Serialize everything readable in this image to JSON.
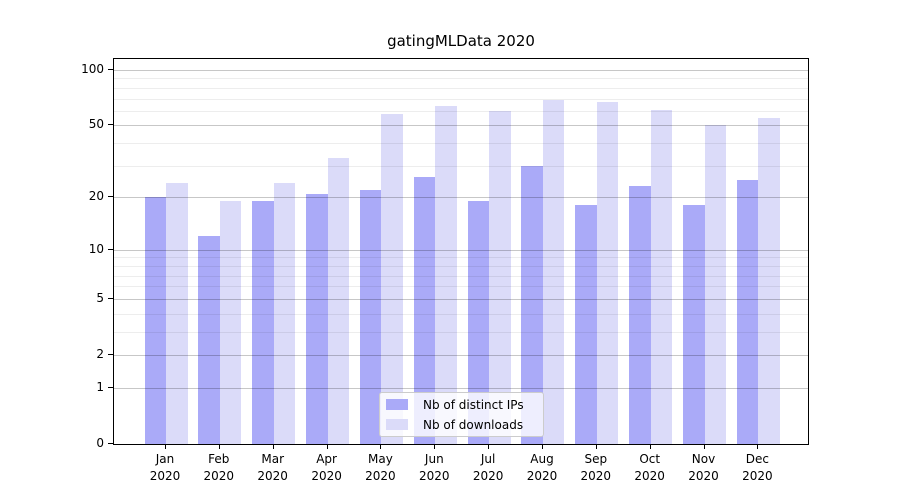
{
  "title": "gatingMLData 2020",
  "chart_data": {
    "type": "bar",
    "title": "gatingMLData 2020",
    "categories": [
      "Jan 2020",
      "Feb 2020",
      "Mar 2020",
      "Apr 2020",
      "May 2020",
      "Jun 2020",
      "Jul 2020",
      "Aug 2020",
      "Sep 2020",
      "Oct 2020",
      "Nov 2020",
      "Dec 2020"
    ],
    "series": [
      {
        "name": "Nb of distinct IPs",
        "color": "#aaaaf8",
        "values": [
          20,
          12,
          19,
          21,
          22,
          26,
          19,
          30,
          18,
          23,
          18,
          25
        ]
      },
      {
        "name": "Nb of downloads",
        "color": "#dbdbf9",
        "values": [
          24,
          19,
          24,
          33,
          58,
          64,
          60,
          69,
          67,
          61,
          50,
          55
        ]
      }
    ],
    "xlabel": "",
    "ylabel": "",
    "yscale": "symlog (log10 of 1+value)",
    "ylim": [
      0,
      115
    ],
    "y_major_ticks": [
      100,
      50,
      20,
      10,
      5,
      2,
      1,
      0
    ],
    "y_minor_gridlines": [
      90,
      80,
      70,
      60,
      40,
      30,
      9,
      8,
      7,
      6,
      4,
      3
    ],
    "grid": "horizontal, major and minor, drawn over bars",
    "legend_position": "inside plot, lower center",
    "axis_color": "#000000",
    "grid_major_color": "#c7c7c7",
    "grid_minor_color": "#ececec"
  }
}
